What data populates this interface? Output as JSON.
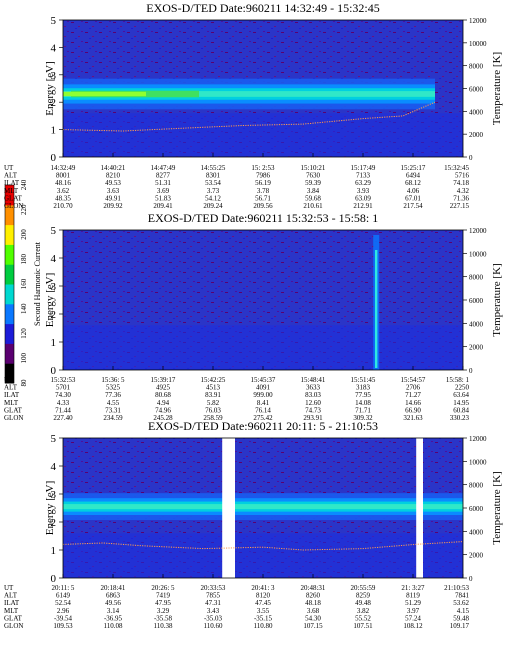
{
  "colorbar": {
    "label": "Second Harmonic Current",
    "ticks": [
      "80",
      "100",
      "120",
      "140",
      "160",
      "180",
      "200",
      "220",
      "240"
    ],
    "colors": [
      "#000000",
      "#5a0070",
      "#1c1cd8",
      "#0a78ff",
      "#00d8d0",
      "#00cc40",
      "#50ff00",
      "#fff000",
      "#ff9000",
      "#e80000"
    ]
  },
  "chart_data": [
    {
      "type": "heatmap",
      "title": "EXOS-D/TED   Date:960211  14:32:49 - 15:32:45",
      "ylabel": "Energy [eV]",
      "y2label": "Temperature [K]",
      "ylim": [
        0,
        5
      ],
      "y2lim": [
        0,
        12000
      ],
      "yticks": [
        "0",
        "1",
        "2",
        "3",
        "4",
        "5"
      ],
      "y2ticks": [
        "0",
        "2000",
        "4000",
        "6000",
        "8000",
        "10000",
        "12000"
      ],
      "band": {
        "center_ev": 2.3,
        "halfwidth_ev": 0.35,
        "start": 0.0,
        "end": 0.93
      },
      "gaps": [],
      "spike": null,
      "temperature_profile": [
        [
          0.0,
          1.0
        ],
        [
          0.15,
          0.95
        ],
        [
          0.3,
          1.05
        ],
        [
          0.45,
          1.15
        ],
        [
          0.6,
          1.2
        ],
        [
          0.75,
          1.4
        ],
        [
          0.85,
          1.5
        ],
        [
          0.93,
          2.0
        ]
      ],
      "table_labels": [
        "UT",
        "ALT",
        "ILAT",
        "MLT",
        "GLAT",
        "GLON"
      ],
      "table_columns": [
        [
          "14:32:49",
          "8001",
          "48.16",
          "3.62",
          "48.35",
          "210.70"
        ],
        [
          "14:40:21",
          "8210",
          "49.53",
          "3.63",
          "49.91",
          "209.92"
        ],
        [
          "14:47:49",
          "8277",
          "51.31",
          "3.69",
          "51.83",
          "209.41"
        ],
        [
          "14:55:25",
          "8301",
          "53.54",
          "3.73",
          "54.12",
          "209.24"
        ],
        [
          "15: 2:53",
          "7986",
          "56.19",
          "3.78",
          "56.71",
          "209.56"
        ],
        [
          "15:10:21",
          "7630",
          "59.39",
          "3.84",
          "59.68",
          "210.61"
        ],
        [
          "15:17:49",
          "7133",
          "63.29",
          "3.93",
          "63.09",
          "212.91"
        ],
        [
          "15:25:17",
          "6494",
          "68.12",
          "4.06",
          "67.01",
          "217.54"
        ],
        [
          "15:32:45",
          "5716",
          "74.18",
          "4.32",
          "71.36",
          "227.15"
        ]
      ]
    },
    {
      "type": "heatmap",
      "title": "EXOS-D/TED   Date:960211  15:32:53 - 15:58: 1",
      "ylabel": "Energy [eV]",
      "y2label": "Temperature [K]",
      "ylim": [
        0,
        5
      ],
      "y2lim": [
        0,
        12000
      ],
      "yticks": [
        "0",
        "1",
        "2",
        "3",
        "4",
        "5"
      ],
      "y2ticks": [
        "0",
        "2000",
        "4000",
        "6000",
        "8000",
        "10000",
        "12000"
      ],
      "band": null,
      "gaps": [],
      "spike": {
        "position": 0.783
      },
      "temperature_profile": [],
      "table_labels": [
        "UT",
        "ALT",
        "ILAT",
        "MLT",
        "GLAT",
        "GLON"
      ],
      "table_columns": [
        [
          "15:32:53",
          "5701",
          "74.30",
          "4.33",
          "71.44",
          "227.40"
        ],
        [
          "15:36: 5",
          "5325",
          "77.36",
          "4.55",
          "73.31",
          "234.59"
        ],
        [
          "15:39:17",
          "4925",
          "80.68",
          "4.94",
          "74.96",
          "245.28"
        ],
        [
          "15:42:25",
          "4513",
          "83.91",
          "5.82",
          "76.03",
          "258.59"
        ],
        [
          "15:45:37",
          "4091",
          "999.00",
          "8.41",
          "76.14",
          "275.42"
        ],
        [
          "15:48:41",
          "3633",
          "83.03",
          "12.60",
          "74.73",
          "293.91"
        ],
        [
          "15:51:45",
          "3183",
          "77.95",
          "14.08",
          "71.71",
          "309.32"
        ],
        [
          "15:54:57",
          "2706",
          "71.27",
          "14.66",
          "66.90",
          "321.63"
        ],
        [
          "15:58: 1",
          "2250",
          "63.64",
          "14.95",
          "60.84",
          "330.23"
        ]
      ]
    },
    {
      "type": "heatmap",
      "title": "EXOS-D/TED   Date:960211  20:11: 5 - 21:10:53",
      "ylabel": "Energy [eV]",
      "y2label": "Temperature [K]",
      "ylim": [
        0,
        5
      ],
      "y2lim": [
        0,
        12000
      ],
      "yticks": [
        "0",
        "1",
        "2",
        "3",
        "4",
        "5"
      ],
      "y2ticks": [
        "0",
        "2000",
        "4000",
        "6000",
        "8000",
        "10000",
        "12000"
      ],
      "band": {
        "center_ev": 2.55,
        "halfwidth_ev": 0.3,
        "start": 0.0,
        "end": 1.0
      },
      "gaps": [
        [
          0.398,
          0.43
        ],
        [
          0.883,
          0.9
        ]
      ],
      "spike": null,
      "temperature_profile": [
        [
          0.0,
          1.2
        ],
        [
          0.1,
          1.25
        ],
        [
          0.2,
          1.15
        ],
        [
          0.35,
          1.05
        ],
        [
          0.5,
          1.1
        ],
        [
          0.6,
          1.0
        ],
        [
          0.75,
          1.05
        ],
        [
          0.88,
          1.2
        ],
        [
          1.0,
          1.3
        ]
      ],
      "table_labels": [
        "UT",
        "ALT",
        "ILAT",
        "MLT",
        "GLAT",
        "GLON"
      ],
      "table_columns": [
        [
          "20:11: 5",
          "6149",
          "52.54",
          "2.96",
          "-39.54",
          "109.53"
        ],
        [
          "20:18:41",
          "6863",
          "49.56",
          "3.14",
          "-36.95",
          "110.08"
        ],
        [
          "20:26: 5",
          "7419",
          "47.95",
          "3.29",
          "-35.58",
          "110.38"
        ],
        [
          "20:33:53",
          "7855",
          "47.31",
          "3.43",
          "-35.03",
          "110.60"
        ],
        [
          "20:41: 3",
          "8120",
          "47.45",
          "3.55",
          "-35.15",
          "110.80"
        ],
        [
          "20:48:31",
          "8260",
          "48.18",
          "3.68",
          "54.30",
          "107.15"
        ],
        [
          "20:55:59",
          "8259",
          "49.48",
          "3.82",
          "55.52",
          "107.51"
        ],
        [
          "21: 3:27",
          "8119",
          "51.29",
          "3.97",
          "57.24",
          "108.12"
        ],
        [
          "21:10:53",
          "7841",
          "53.62",
          "4.15",
          "59.48",
          "109.17"
        ]
      ]
    }
  ]
}
